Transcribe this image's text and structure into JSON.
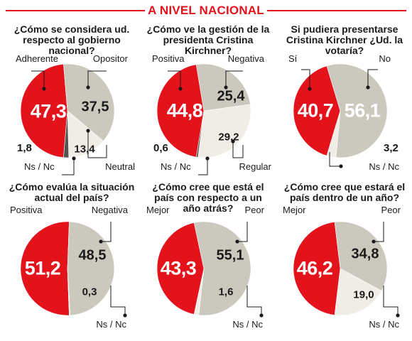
{
  "header": {
    "title": "A NIVEL NACIONAL"
  },
  "colors": {
    "red": "#e3121b",
    "gray": "#cbc9bd",
    "light": "#efede5",
    "dark": "#555555",
    "line": "#1a1a1a"
  },
  "chart_data": [
    {
      "type": "pie",
      "title": "¿Cómo se considera ud. respecto al gobierno nacional?",
      "slices": [
        {
          "label": "Adherente",
          "value": 47.3,
          "display": "47,3",
          "color": "red"
        },
        {
          "label": "Opositor",
          "value": 37.5,
          "display": "37,5",
          "color": "gray"
        },
        {
          "label": "Neutral",
          "value": 13.4,
          "display": "13,4",
          "color": "light"
        },
        {
          "label": "Ns / Nc",
          "value": 1.8,
          "display": "1,8",
          "color": "dark"
        }
      ]
    },
    {
      "type": "pie",
      "title": "¿Cómo ve la gestión de la presidenta Cristina Kirchner?",
      "slices": [
        {
          "label": "Positiva",
          "value": 44.8,
          "display": "44,8",
          "color": "red"
        },
        {
          "label": "Negativa",
          "value": 25.4,
          "display": "25,4",
          "color": "gray"
        },
        {
          "label": "Regular",
          "value": 29.2,
          "display": "29,2",
          "color": "light"
        },
        {
          "label": "Ns / Nc",
          "value": 0.6,
          "display": "0,6",
          "color": "dark"
        }
      ]
    },
    {
      "type": "pie",
      "title": "Si pudiera presentarse Cristina Kirchner ¿Ud. la votaría?",
      "slices": [
        {
          "label": "Sí",
          "value": 40.7,
          "display": "40,7",
          "color": "red"
        },
        {
          "label": "No",
          "value": 56.1,
          "display": "56,1",
          "color": "gray"
        },
        {
          "label": "Ns / Nc",
          "value": 3.2,
          "display": "3,2",
          "color": "light"
        }
      ]
    },
    {
      "type": "pie",
      "title": "¿Cómo evalúa la situación actual del país?",
      "slices": [
        {
          "label": "Positiva",
          "value": 51.2,
          "display": "51,2",
          "color": "red"
        },
        {
          "label": "Negativa",
          "value": 48.5,
          "display": "48,5",
          "color": "gray"
        },
        {
          "label": "Ns / Nc",
          "value": 0.3,
          "display": "0,3",
          "color": "light"
        }
      ]
    },
    {
      "type": "pie",
      "title": "¿Cómo cree que está el país con respecto a un año atrás?",
      "slices": [
        {
          "label": "Mejor",
          "value": 43.3,
          "display": "43,3",
          "color": "red"
        },
        {
          "label": "Peor",
          "value": 55.1,
          "display": "55,1",
          "color": "gray"
        },
        {
          "label": "Ns / Nc",
          "value": 1.6,
          "display": "1,6",
          "color": "light"
        }
      ]
    },
    {
      "type": "pie",
      "title": "¿Cómo cree que estará el país dentro de un año?",
      "slices": [
        {
          "label": "Mejor",
          "value": 46.2,
          "display": "46,2",
          "color": "red"
        },
        {
          "label": "Peor",
          "value": 34.8,
          "display": "34,8",
          "color": "gray"
        },
        {
          "label": "Ns / Nc",
          "value": 19.0,
          "display": "19,0",
          "color": "light"
        }
      ]
    }
  ]
}
